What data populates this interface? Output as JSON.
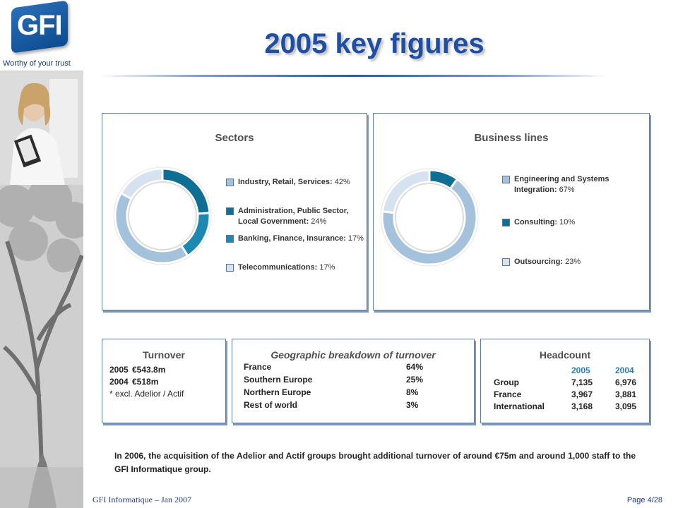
{
  "branding": {
    "logo_text": "GFI",
    "tagline": "Worthy of your trust"
  },
  "title": "2005 key figures",
  "colors": {
    "title": "#1f4fa3",
    "panel_border": "#5e7da6",
    "light_blue": "#a4c2db",
    "dark_teal": "#0f6e94",
    "mid_teal": "#1c89b3",
    "pale_blue": "#d6e2ef"
  },
  "sectors": {
    "title": "Sectors",
    "items": [
      {
        "label": "Industry, Retail, Services:",
        "pct": "42%",
        "value": 42,
        "color": "#a4c2db"
      },
      {
        "label": "Administration, Public Sector, Local Government:",
        "pct": "24%",
        "value": 24,
        "color": "#0f6e94"
      },
      {
        "label": "Banking, Finance, Insurance:",
        "pct": "17%",
        "value": 17,
        "color": "#1c89b3"
      },
      {
        "label": "Telecommunications:",
        "pct": "17%",
        "value": 17,
        "color": "#d6e2ef"
      }
    ]
  },
  "business_lines": {
    "title": "Business lines",
    "items": [
      {
        "label": "Engineering and Systems Integration:",
        "pct": "67%",
        "value": 67,
        "color": "#a4c2db"
      },
      {
        "label": "Consulting:",
        "pct": "10%",
        "value": 10,
        "color": "#0f6e94"
      },
      {
        "label": "Outsourcing:",
        "pct": "23%",
        "value": 23,
        "color": "#d6e2ef"
      }
    ]
  },
  "turnover": {
    "title": "Turnover",
    "rows": [
      {
        "year": "2005",
        "value": "€543.8m"
      },
      {
        "year": "2004",
        "value": "€518m"
      }
    ],
    "note": "* excl. Adelior / Actif"
  },
  "geographic": {
    "title": "Geographic breakdown of turnover",
    "rows": [
      {
        "region": "France",
        "pct": "64%"
      },
      {
        "region": "Southern Europe",
        "pct": "25%"
      },
      {
        "region": "Northern Europe",
        "pct": "8%"
      },
      {
        "region": "Rest of world",
        "pct": "3%"
      }
    ]
  },
  "headcount": {
    "title": "Headcount",
    "col1": "2005",
    "col2": "2004",
    "rows": [
      {
        "label": "Group",
        "v2005": "7,135",
        "v2004": "6,976"
      },
      {
        "label": "France",
        "v2005": "3,967",
        "v2004": "3,881"
      },
      {
        "label": "International",
        "v2005": "3,168",
        "v2004": "3,095"
      }
    ]
  },
  "footnote": "In 2006, the acquisition of the Adelior and Actif groups brought additional turnover of around €75m and around 1,000 staff to the GFI Informatique group.",
  "footer": {
    "left": "GFI Informatique – Jan 2007",
    "right": "Page 4/28"
  }
}
